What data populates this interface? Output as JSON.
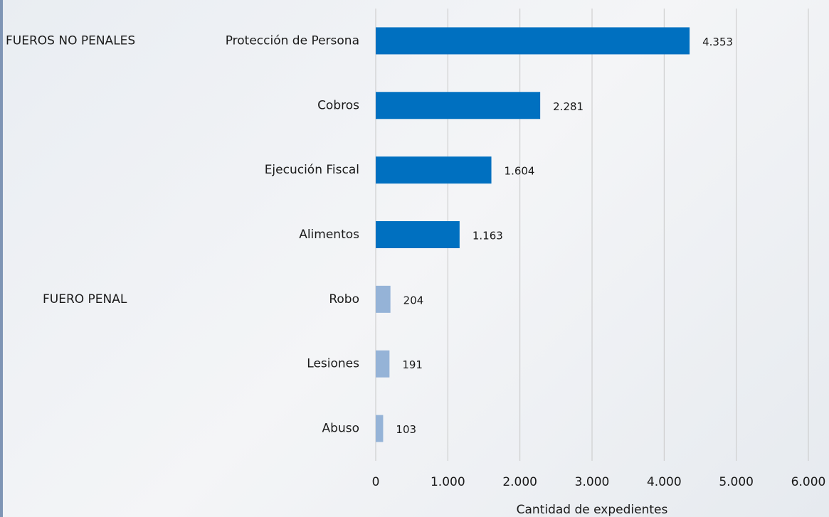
{
  "chart_data": {
    "type": "bar",
    "orientation": "horizontal",
    "groups": [
      {
        "name": "FUEROS NO PENALES",
        "color": "#0070c0",
        "categories": [
          "Protección de Persona",
          "Cobros",
          "Ejecución Fiscal",
          "Alimentos"
        ],
        "values": [
          4353,
          2281,
          1604,
          1163
        ],
        "value_labels": [
          "4.353",
          "2.281",
          "1.604",
          "1.163"
        ]
      },
      {
        "name": "FUERO PENAL",
        "color": "#95b3d7",
        "categories": [
          "Robo",
          "Lesiones",
          "Abuso"
        ],
        "values": [
          204,
          191,
          103
        ],
        "value_labels": [
          "204",
          "191",
          "103"
        ]
      }
    ],
    "xlabel": "Cantidad de expedientes",
    "xlim": [
      0,
      6000
    ],
    "xticks": [
      0,
      {
        "value": 1000,
        "label": "1.000"
      },
      {
        "value": 2000,
        "label": "2.000"
      },
      {
        "value": 3000,
        "label": "3.000"
      },
      {
        "value": 4000,
        "label": "4.000"
      },
      {
        "value": 5000,
        "label": "5.000"
      },
      {
        "value": 6000,
        "label": "6.000"
      }
    ],
    "grid": true
  }
}
